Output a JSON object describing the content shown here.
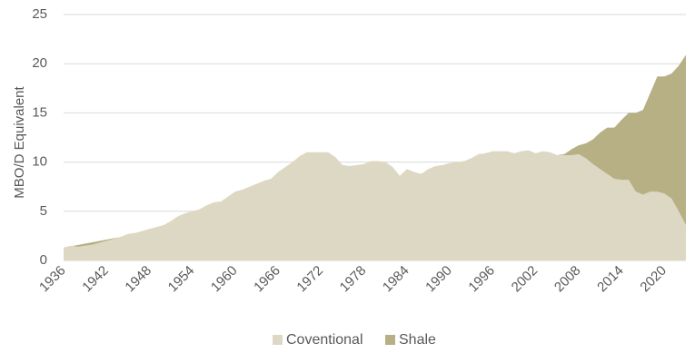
{
  "chart_data": {
    "type": "area",
    "stacked": true,
    "ylabel": "MBO/D Equivalent",
    "xlabel": "",
    "title": "",
    "ylim": [
      0,
      25
    ],
    "yticks": [
      0,
      5,
      10,
      15,
      20,
      25
    ],
    "xlim": [
      1936,
      2023
    ],
    "xticks": [
      1936,
      1942,
      1948,
      1954,
      1960,
      1966,
      1972,
      1978,
      1984,
      1990,
      1996,
      2002,
      2008,
      2014,
      2020
    ],
    "grid": "horizontal",
    "legend_position": "bottom",
    "series": [
      {
        "name": "Coventional",
        "color": "#ddd8c4",
        "points": [
          [
            1936,
            1.3
          ],
          [
            1937,
            1.5
          ],
          [
            1938,
            1.4
          ],
          [
            1939,
            1.5
          ],
          [
            1940,
            1.6
          ],
          [
            1941,
            1.8
          ],
          [
            1942,
            2.0
          ],
          [
            1943,
            2.2
          ],
          [
            1944,
            2.4
          ],
          [
            1945,
            2.7
          ],
          [
            1946,
            2.8
          ],
          [
            1947,
            3.0
          ],
          [
            1948,
            3.2
          ],
          [
            1949,
            3.4
          ],
          [
            1950,
            3.6
          ],
          [
            1951,
            4.0
          ],
          [
            1952,
            4.5
          ],
          [
            1953,
            4.8
          ],
          [
            1954,
            5.0
          ],
          [
            1955,
            5.2
          ],
          [
            1956,
            5.6
          ],
          [
            1957,
            5.9
          ],
          [
            1958,
            6.0
          ],
          [
            1959,
            6.5
          ],
          [
            1960,
            7.0
          ],
          [
            1961,
            7.2
          ],
          [
            1962,
            7.5
          ],
          [
            1963,
            7.8
          ],
          [
            1964,
            8.1
          ],
          [
            1965,
            8.3
          ],
          [
            1966,
            9.0
          ],
          [
            1967,
            9.5
          ],
          [
            1968,
            10.0
          ],
          [
            1969,
            10.6
          ],
          [
            1970,
            11.0
          ],
          [
            1971,
            11.0
          ],
          [
            1972,
            11.0
          ],
          [
            1973,
            11.0
          ],
          [
            1974,
            10.5
          ],
          [
            1975,
            9.7
          ],
          [
            1976,
            9.6
          ],
          [
            1977,
            9.7
          ],
          [
            1978,
            9.8
          ],
          [
            1979,
            10.1
          ],
          [
            1980,
            10.1
          ],
          [
            1981,
            10.0
          ],
          [
            1982,
            9.5
          ],
          [
            1983,
            8.6
          ],
          [
            1984,
            9.3
          ],
          [
            1985,
            9.0
          ],
          [
            1986,
            8.8
          ],
          [
            1987,
            9.3
          ],
          [
            1988,
            9.6
          ],
          [
            1989,
            9.7
          ],
          [
            1990,
            9.9
          ],
          [
            1991,
            10.0
          ],
          [
            1992,
            10.1
          ],
          [
            1993,
            10.4
          ],
          [
            1994,
            10.8
          ],
          [
            1995,
            10.9
          ],
          [
            1996,
            11.1
          ],
          [
            1997,
            11.1
          ],
          [
            1998,
            11.1
          ],
          [
            1999,
            10.9
          ],
          [
            2000,
            11.1
          ],
          [
            2001,
            11.2
          ],
          [
            2002,
            10.9
          ],
          [
            2003,
            11.1
          ],
          [
            2004,
            11.0
          ],
          [
            2005,
            10.7
          ],
          [
            2006,
            10.7
          ],
          [
            2007,
            10.7
          ],
          [
            2008,
            10.8
          ],
          [
            2009,
            10.4
          ],
          [
            2010,
            9.8
          ],
          [
            2011,
            9.3
          ],
          [
            2012,
            8.8
          ],
          [
            2013,
            8.3
          ],
          [
            2014,
            8.2
          ],
          [
            2015,
            8.2
          ],
          [
            2016,
            7.0
          ],
          [
            2017,
            6.7
          ],
          [
            2018,
            7.0
          ],
          [
            2019,
            7.0
          ],
          [
            2020,
            6.8
          ],
          [
            2021,
            6.3
          ],
          [
            2022,
            5.0
          ],
          [
            2023,
            3.6
          ]
        ]
      },
      {
        "name": "Shale",
        "color": "#b7b084",
        "points": [
          [
            1936,
            1.3
          ],
          [
            2005,
            10.7
          ],
          [
            2006,
            10.8
          ],
          [
            2007,
            11.3
          ],
          [
            2008,
            11.7
          ],
          [
            2009,
            11.9
          ],
          [
            2010,
            12.3
          ],
          [
            2011,
            13.0
          ],
          [
            2012,
            13.5
          ],
          [
            2013,
            13.5
          ],
          [
            2014,
            14.3
          ],
          [
            2015,
            15.0
          ],
          [
            2016,
            15.0
          ],
          [
            2017,
            15.3
          ],
          [
            2018,
            17.0
          ],
          [
            2019,
            18.7
          ],
          [
            2020,
            18.7
          ],
          [
            2021,
            19.0
          ],
          [
            2022,
            19.8
          ],
          [
            2023,
            20.9
          ]
        ]
      }
    ]
  }
}
